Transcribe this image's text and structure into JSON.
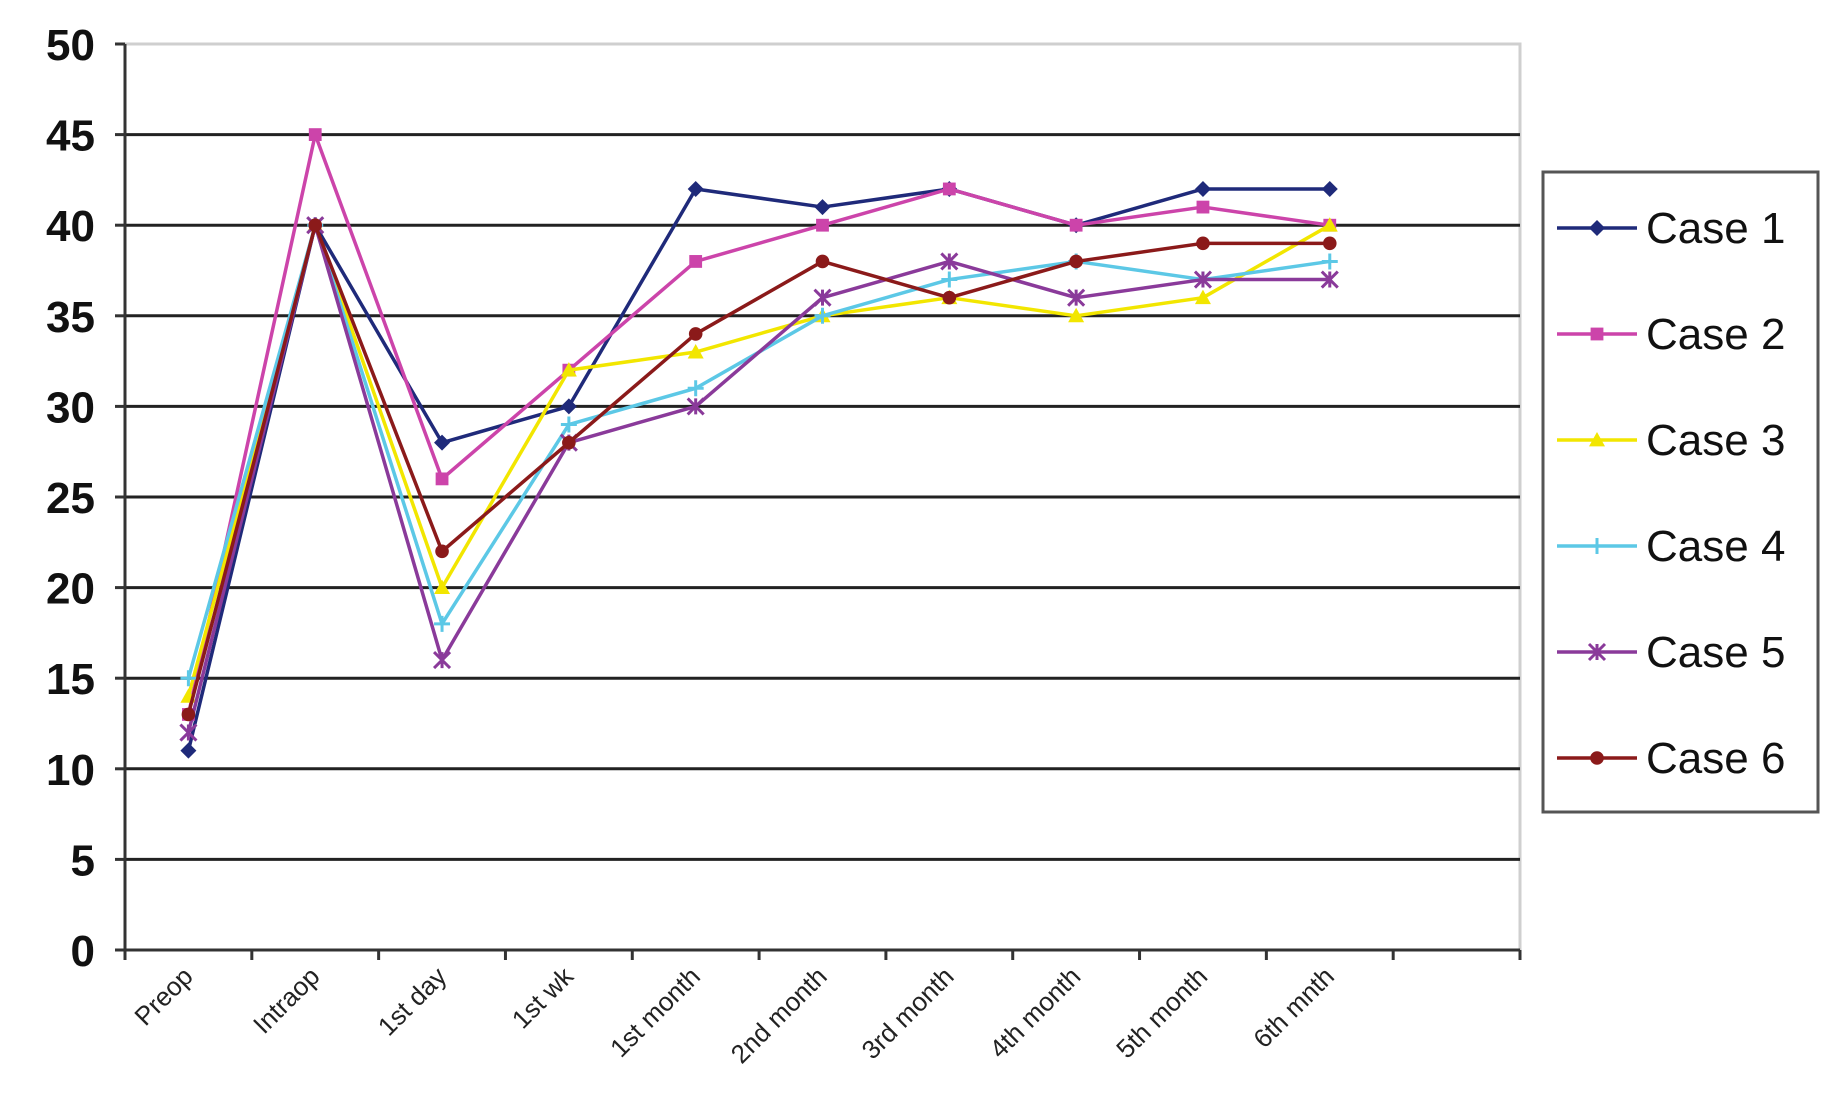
{
  "chart_data": {
    "type": "line",
    "categories": [
      "Preop",
      "Intraop",
      "1st day",
      "1st wk",
      "1st month",
      "2nd month",
      "3rd month",
      "4th month",
      "5th month",
      "6th mnth"
    ],
    "ylim": [
      0,
      50
    ],
    "yticks": [
      0,
      5,
      10,
      15,
      20,
      25,
      30,
      35,
      40,
      45,
      50
    ],
    "grid": true,
    "legend_position": "right",
    "series": [
      {
        "name": "Case 1",
        "color": "#1f2a7a",
        "marker": "diamond",
        "values": [
          11,
          40,
          28,
          30,
          42,
          41,
          42,
          40,
          42,
          42
        ]
      },
      {
        "name": "Case 2",
        "color": "#cc44aa",
        "marker": "square",
        "values": [
          13,
          45,
          26,
          32,
          38,
          40,
          42,
          40,
          41,
          40
        ]
      },
      {
        "name": "Case 3",
        "color": "#f2e600",
        "marker": "triangle",
        "values": [
          14,
          40,
          20,
          32,
          33,
          35,
          36,
          35,
          36,
          40
        ]
      },
      {
        "name": "Case 4",
        "color": "#5cc8e6",
        "marker": "cross",
        "values": [
          15,
          40,
          18,
          29,
          31,
          35,
          37,
          38,
          37,
          38
        ]
      },
      {
        "name": "Case 5",
        "color": "#8a3a9a",
        "marker": "star",
        "values": [
          12,
          40,
          16,
          28,
          30,
          36,
          38,
          36,
          37,
          37
        ]
      },
      {
        "name": "Case 6",
        "color": "#8b1a1a",
        "marker": "circle",
        "values": [
          13,
          40,
          22,
          28,
          34,
          38,
          36,
          38,
          39,
          39
        ]
      }
    ]
  }
}
